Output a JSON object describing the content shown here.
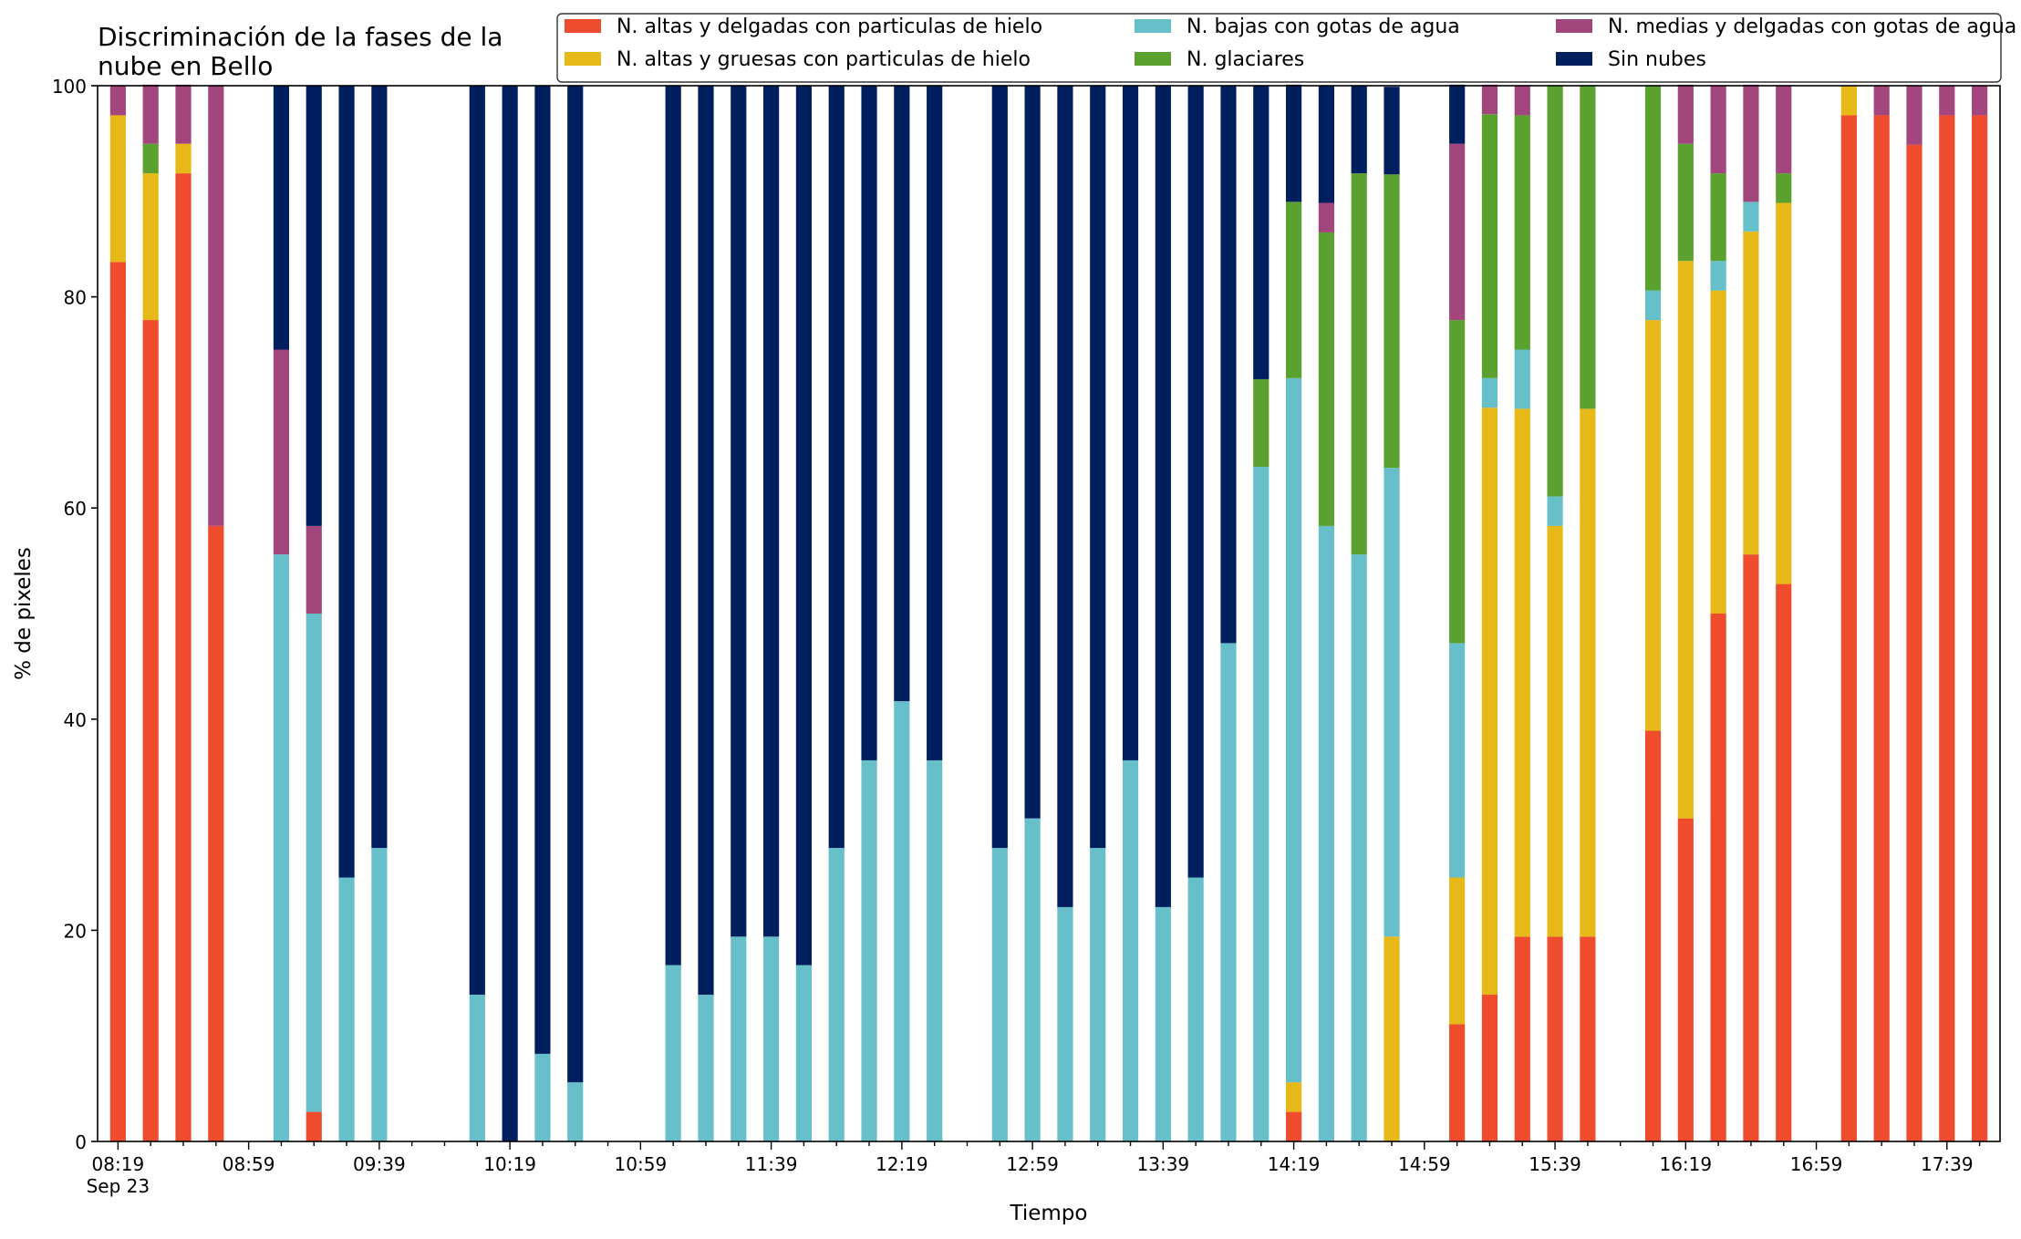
{
  "chart_data": {
    "type": "bar",
    "stacked": true,
    "title": "Discriminación de la fases de la\nnube en Bello",
    "xlabel": "Tiempo",
    "ylabel": "% de pixeles",
    "ylim": [
      0,
      100
    ],
    "yticks": [
      0,
      20,
      40,
      60,
      80,
      100
    ],
    "x_tick_labels": [
      "08:19\nSep 23",
      "08:59",
      "09:39",
      "10:19",
      "10:59",
      "11:39",
      "12:19",
      "12:59",
      "13:39",
      "14:19",
      "14:59",
      "15:39",
      "16:19",
      "16:59",
      "17:39"
    ],
    "grid": false,
    "legend_position": "top-right",
    "categories": [
      "08:19",
      "08:29",
      "08:39",
      "08:49",
      "08:59",
      "09:09",
      "09:19",
      "09:29",
      "09:39",
      "09:49",
      "09:59",
      "10:09",
      "10:19",
      "10:29",
      "10:39",
      "10:49",
      "10:59",
      "11:09",
      "11:19",
      "11:29",
      "11:39",
      "11:49",
      "11:59",
      "12:09",
      "12:19",
      "12:29",
      "12:39",
      "12:49",
      "12:59",
      "13:09",
      "13:19",
      "13:29",
      "13:39",
      "13:49",
      "13:59",
      "14:09",
      "14:19",
      "14:29",
      "14:39",
      "14:49",
      "14:59",
      "15:09",
      "15:19",
      "15:29",
      "15:39",
      "15:49",
      "15:59",
      "16:09",
      "16:19",
      "16:29",
      "16:39",
      "16:49",
      "16:59",
      "17:09",
      "17:19",
      "17:29",
      "17:39",
      "17:49"
    ],
    "series": [
      {
        "name": "N. altas y delgadas con particulas de hielo",
        "color": "#ee4c2c",
        "values": [
          83.3,
          77.8,
          91.7,
          58.3,
          0,
          0,
          2.8,
          0,
          0,
          0,
          0,
          0,
          0,
          0,
          0,
          0,
          0,
          0,
          0,
          0,
          0,
          0,
          0,
          0,
          0,
          0,
          0,
          0,
          0,
          0,
          0,
          0,
          0,
          0,
          0,
          0,
          2.8,
          0,
          0,
          0,
          0,
          11.1,
          13.9,
          19.4,
          19.4,
          19.4,
          0,
          38.9,
          30.6,
          50.0,
          55.6,
          52.8,
          0,
          97.2,
          97.2,
          94.4,
          97.2,
          97.2
        ]
      },
      {
        "name": "N. altas y gruesas con particulas de hielo",
        "color": "#e6b818",
        "values": [
          13.9,
          13.9,
          2.8,
          0,
          0,
          0,
          0,
          0,
          0,
          0,
          0,
          0,
          0,
          0,
          0,
          0,
          0,
          0,
          0,
          0,
          0,
          0,
          0,
          0,
          0,
          0,
          0,
          0,
          0,
          0,
          0,
          0,
          0,
          0,
          0,
          0,
          2.8,
          0,
          0,
          19.4,
          0,
          13.9,
          55.6,
          50.0,
          38.9,
          50.0,
          0,
          38.9,
          52.8,
          30.6,
          30.6,
          36.1,
          0,
          2.8,
          0,
          0,
          0,
          0
        ]
      },
      {
        "name": "N. bajas con gotas de agua",
        "color": "#67bfca",
        "values": [
          0,
          0,
          0,
          0,
          0,
          55.6,
          47.2,
          25.0,
          27.8,
          0,
          0,
          13.9,
          0,
          8.3,
          5.6,
          0,
          0,
          16.7,
          13.9,
          19.4,
          19.4,
          16.7,
          27.8,
          36.1,
          41.7,
          36.1,
          0,
          27.8,
          30.6,
          22.2,
          27.8,
          36.1,
          22.2,
          25.0,
          47.2,
          63.9,
          66.7,
          58.3,
          55.6,
          44.4,
          0,
          22.2,
          2.8,
          5.6,
          2.8,
          0,
          0,
          2.8,
          0,
          2.8,
          2.8,
          0,
          0,
          0,
          0,
          0,
          0,
          0
        ]
      },
      {
        "name": "N. glaciares",
        "color": "#5ba12f",
        "values": [
          0,
          2.8,
          0,
          0,
          0,
          0,
          0,
          0,
          0,
          0,
          0,
          0,
          0,
          0,
          0,
          0,
          0,
          0,
          0,
          0,
          0,
          0,
          0,
          0,
          0,
          0,
          0,
          0,
          0,
          0,
          0,
          0,
          0,
          0,
          0,
          8.3,
          16.7,
          27.8,
          36.1,
          27.8,
          0,
          30.6,
          25.0,
          22.2,
          38.9,
          30.6,
          0,
          19.4,
          11.1,
          8.3,
          0,
          2.8,
          0,
          0,
          0,
          0,
          0,
          0
        ]
      },
      {
        "name": "N. medias y delgadas con gotas de agua",
        "color": "#a4467e",
        "values": [
          2.8,
          5.6,
          5.6,
          41.7,
          0,
          19.4,
          8.3,
          0,
          0,
          0,
          0,
          0,
          0,
          0,
          0,
          0,
          0,
          0,
          0,
          0,
          0,
          0,
          0,
          0,
          0,
          0,
          0,
          0,
          0,
          0,
          0,
          0,
          0,
          0,
          0,
          0,
          0,
          2.8,
          0,
          0,
          0,
          16.7,
          2.8,
          2.8,
          0,
          0,
          0,
          0,
          5.6,
          8.3,
          11.1,
          8.3,
          0,
          0,
          2.8,
          5.6,
          2.8,
          2.8
        ]
      },
      {
        "name": "Sin nubes",
        "color": "#001f5e",
        "values": [
          0,
          0,
          0,
          0,
          0,
          25.0,
          41.7,
          75.0,
          72.2,
          0,
          0,
          86.1,
          100,
          91.7,
          94.4,
          0,
          0,
          83.3,
          86.1,
          80.6,
          80.6,
          83.3,
          72.2,
          63.9,
          58.3,
          63.9,
          0,
          72.2,
          69.4,
          77.8,
          72.2,
          63.9,
          77.8,
          75.0,
          52.8,
          27.8,
          11.1,
          11.1,
          8.3,
          8.3,
          0,
          5.6,
          0,
          0,
          0,
          0,
          0,
          0,
          0,
          0,
          0,
          0,
          0,
          0,
          0,
          0,
          0,
          0
        ]
      }
    ]
  }
}
